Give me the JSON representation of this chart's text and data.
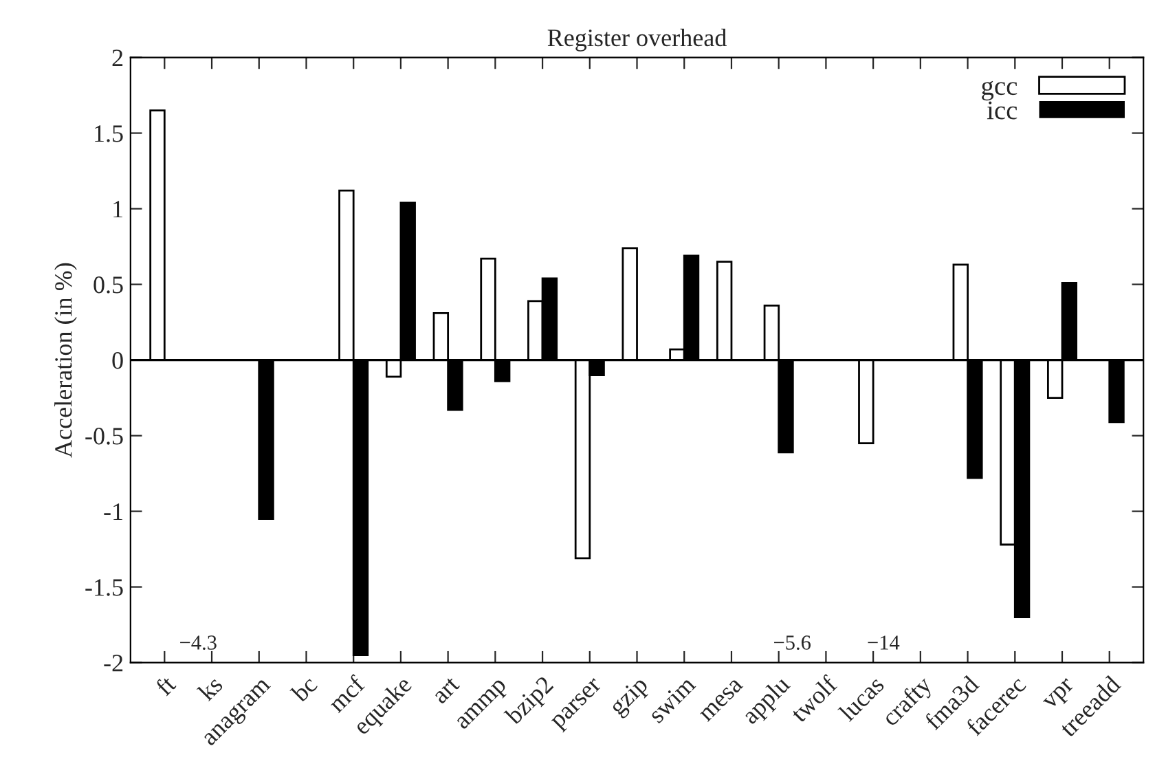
{
  "chart_data": {
    "type": "bar",
    "title": "Register overhead",
    "ylabel": "Acceleration (in %)",
    "categories": [
      "ft",
      "ks",
      "anagram",
      "bc",
      "mcf",
      "equake",
      "art",
      "ammp",
      "bzip2",
      "parser",
      "gzip",
      "swim",
      "mesa",
      "applu",
      "twolf",
      "lucas",
      "crafty",
      "fma3d",
      "facerec",
      "vpr",
      "treeadd"
    ],
    "series": [
      {
        "name": "gcc",
        "color": "#ffffff",
        "values": [
          1.65,
          0,
          0,
          0,
          1.12,
          -0.11,
          0.31,
          0.67,
          0.39,
          -1.31,
          0.74,
          0.07,
          0.65,
          0.36,
          null,
          -0.55,
          0,
          0.63,
          -1.22,
          -0.25,
          0
        ]
      },
      {
        "name": "icc",
        "color": "#000000",
        "values": [
          null,
          0,
          -1.05,
          0,
          -1.95,
          1.04,
          -0.33,
          -0.14,
          0.54,
          -0.1,
          0,
          0.69,
          0,
          -0.61,
          null,
          0,
          0,
          -0.78,
          -1.7,
          0.51,
          -0.41
        ]
      }
    ],
    "annotations": [
      "−4.3",
      "−5.6",
      "−14"
    ],
    "ref_lines": [
      {
        "axis": "y",
        "value": 0,
        "color": "#000000"
      }
    ],
    "ylim": [
      -2,
      2
    ],
    "yticks": [
      -2,
      -1.5,
      -1,
      -0.5,
      0,
      0.5,
      1,
      1.5,
      2
    ],
    "legend": "top right"
  }
}
